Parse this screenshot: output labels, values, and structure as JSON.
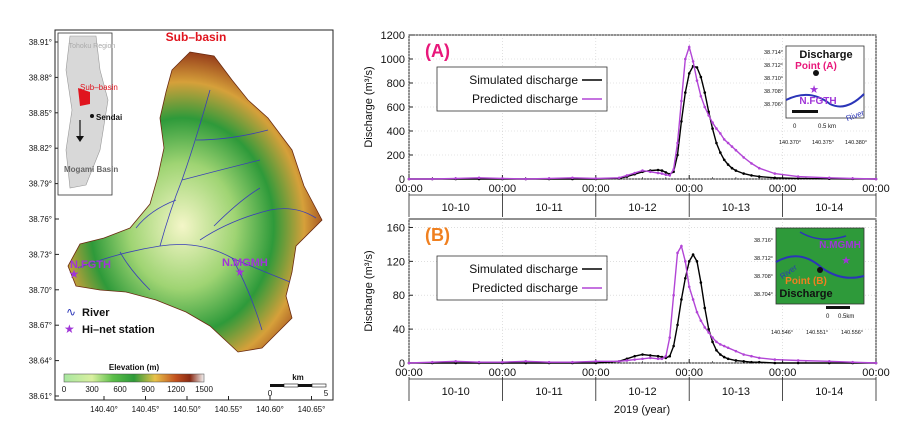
{
  "map": {
    "title": "Sub–basin",
    "lat_ticks": [
      "38.91°",
      "38.88°",
      "38.85°",
      "38.82°",
      "38.79°",
      "38.76°",
      "38.73°",
      "38.70°",
      "38.67°",
      "38.64°",
      "38.61°"
    ],
    "lon_ticks": [
      "140.40°",
      "140.45°",
      "140.50°",
      "140.55°",
      "140.60°",
      "140.65°"
    ],
    "inset": {
      "region": "Tohoku Region",
      "subbasin": "Sub–basin",
      "city": "Sendai",
      "basin": "Mogami Basin"
    },
    "stations": [
      {
        "name": "N.FGTH"
      },
      {
        "name": "N.MGMH"
      }
    ],
    "legend": {
      "river": "River",
      "station": "Hi–net station"
    },
    "elevation": {
      "title": "Elevation (m)",
      "ticks": [
        "0",
        "300",
        "600",
        "900",
        "1200",
        "1500"
      ]
    },
    "scalebar": {
      "unit": "km",
      "ticks": [
        "0",
        "5"
      ]
    },
    "colors": {
      "station": "#a035d8",
      "river": "#2b35b8",
      "title": "#e0141e"
    }
  },
  "chart_data": [
    {
      "type": "line",
      "panel": "(A)",
      "ylabel": "Discharge (m³/s)",
      "xlabel": "",
      "ylim": [
        0,
        1200
      ],
      "yticks": [
        0,
        200,
        400,
        600,
        800,
        1000,
        1200
      ],
      "xlim": [
        0,
        120
      ],
      "time_ticks": [
        "00:00",
        "00:00",
        "00:00",
        "00:00",
        "00:00",
        "00:00"
      ],
      "day_labels": [
        "10-10",
        "10-11",
        "10-12",
        "10-13",
        "10-14"
      ],
      "series": [
        {
          "name": "Simulated discharge",
          "color": "#000000",
          "x": [
            0,
            6,
            12,
            18,
            24,
            30,
            36,
            42,
            48,
            54,
            56,
            58,
            60,
            62,
            64,
            65,
            66,
            67,
            68,
            69,
            70,
            71,
            72,
            73,
            74,
            75,
            76,
            77,
            78,
            79,
            80,
            81,
            82,
            83,
            84,
            86,
            88,
            90,
            94,
            100,
            108,
            114,
            120
          ],
          "y": [
            0,
            0,
            0,
            0,
            0,
            0,
            0,
            0,
            0,
            5,
            20,
            40,
            60,
            70,
            75,
            70,
            55,
            40,
            60,
            200,
            480,
            720,
            880,
            940,
            930,
            850,
            720,
            560,
            420,
            300,
            220,
            160,
            120,
            90,
            70,
            45,
            30,
            20,
            10,
            5,
            2,
            1,
            0
          ]
        },
        {
          "name": "Predicted discharge",
          "color": "#b245d6",
          "x": [
            0,
            6,
            12,
            18,
            24,
            30,
            36,
            42,
            48,
            54,
            56,
            58,
            60,
            62,
            64,
            65,
            66,
            67,
            68,
            69,
            70,
            71,
            72,
            73,
            74,
            75,
            76,
            77,
            78,
            79,
            80,
            81,
            82,
            83,
            84,
            86,
            88,
            90,
            94,
            100,
            108,
            114,
            120
          ],
          "y": [
            0,
            0,
            5,
            10,
            5,
            0,
            5,
            10,
            5,
            10,
            30,
            50,
            70,
            60,
            50,
            45,
            35,
            30,
            80,
            300,
            650,
            1000,
            1100,
            980,
            820,
            690,
            600,
            530,
            470,
            420,
            380,
            330,
            300,
            270,
            240,
            180,
            130,
            90,
            45,
            20,
            10,
            5,
            0
          ]
        }
      ],
      "inset": {
        "title": "Discharge",
        "point": "Point (A)",
        "station": "N.FGTH",
        "river": "River",
        "lat_ticks": [
          "38.714°",
          "38.712°",
          "38.710°",
          "38.708°",
          "38.706°"
        ],
        "lon_ticks": [
          "140.370°",
          "140.375°",
          "140.380°"
        ],
        "scale": [
          "0",
          "0.5 km"
        ]
      }
    },
    {
      "type": "line",
      "panel": "(B)",
      "ylabel": "Discharge (m³/s)",
      "xlabel": "2019 (year)",
      "ylim": [
        0,
        170
      ],
      "yticks": [
        0,
        40,
        80,
        120,
        160
      ],
      "xlim": [
        0,
        120
      ],
      "time_ticks": [
        "00:00",
        "00:00",
        "00:00",
        "00:00",
        "00:00",
        "00:00"
      ],
      "day_labels": [
        "10-10",
        "10-11",
        "10-12",
        "10-13",
        "10-14"
      ],
      "series": [
        {
          "name": "Simulated discharge",
          "color": "#000000",
          "x": [
            0,
            6,
            12,
            18,
            24,
            30,
            36,
            42,
            48,
            54,
            56,
            58,
            60,
            62,
            64,
            65,
            66,
            67,
            68,
            69,
            70,
            71,
            72,
            73,
            74,
            75,
            76,
            77,
            78,
            79,
            80,
            81,
            82,
            84,
            86,
            88,
            90,
            94,
            100,
            108,
            114,
            120
          ],
          "y": [
            0,
            0,
            0,
            0,
            0,
            0,
            0,
            0,
            0,
            2,
            5,
            8,
            10,
            9,
            8,
            7,
            6,
            8,
            20,
            45,
            75,
            100,
            120,
            128,
            120,
            95,
            65,
            40,
            25,
            15,
            10,
            7,
            5,
            3,
            2,
            1,
            1,
            0,
            0,
            0,
            0,
            0
          ]
        },
        {
          "name": "Predicted discharge",
          "color": "#b245d6",
          "x": [
            0,
            6,
            12,
            18,
            24,
            30,
            36,
            42,
            48,
            54,
            56,
            58,
            60,
            62,
            64,
            65,
            66,
            67,
            68,
            69,
            70,
            71,
            72,
            73,
            74,
            75,
            76,
            77,
            78,
            79,
            80,
            81,
            82,
            84,
            86,
            88,
            90,
            94,
            100,
            108,
            114,
            120
          ],
          "y": [
            0,
            1,
            2,
            1,
            1,
            2,
            1,
            1,
            2,
            2,
            3,
            4,
            5,
            6,
            5,
            5,
            8,
            30,
            80,
            130,
            138,
            120,
            90,
            75,
            60,
            50,
            42,
            36,
            30,
            25,
            22,
            20,
            18,
            14,
            10,
            8,
            6,
            4,
            3,
            2,
            1,
            0
          ]
        }
      ],
      "inset": {
        "title": "Discharge",
        "point": "Point (B)",
        "station": "N.MGMH",
        "river": "River",
        "lat_ticks": [
          "38.716°",
          "38.712°",
          "38.708°",
          "38.704°"
        ],
        "lon_ticks": [
          "140.546°",
          "140.551°",
          "140.556°"
        ],
        "scale": [
          "0",
          "0.5km"
        ]
      }
    }
  ]
}
